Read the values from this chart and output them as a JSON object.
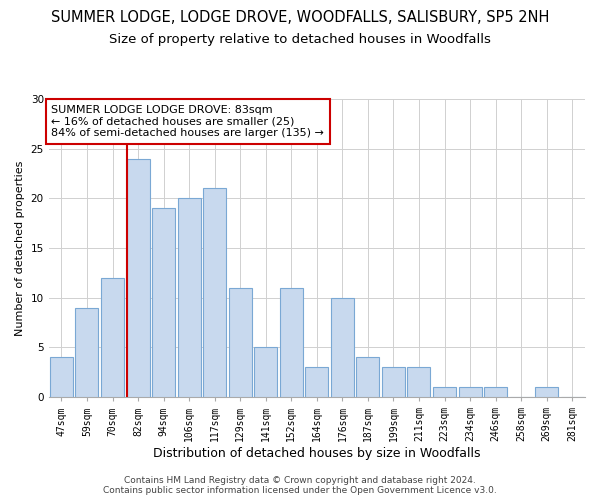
{
  "title": "SUMMER LODGE, LODGE DROVE, WOODFALLS, SALISBURY, SP5 2NH",
  "subtitle": "Size of property relative to detached houses in Woodfalls",
  "xlabel": "Distribution of detached houses by size in Woodfalls",
  "ylabel": "Number of detached properties",
  "bar_labels": [
    "47sqm",
    "59sqm",
    "70sqm",
    "82sqm",
    "94sqm",
    "106sqm",
    "117sqm",
    "129sqm",
    "141sqm",
    "152sqm",
    "164sqm",
    "176sqm",
    "187sqm",
    "199sqm",
    "211sqm",
    "223sqm",
    "234sqm",
    "246sqm",
    "258sqm",
    "269sqm",
    "281sqm"
  ],
  "bar_values": [
    4,
    9,
    12,
    24,
    19,
    20,
    21,
    11,
    5,
    11,
    3,
    10,
    4,
    3,
    3,
    1,
    1,
    1,
    0,
    1,
    0
  ],
  "vline_index": 3,
  "bar_color": "#c8d9ee",
  "bar_edge_color": "#7aa8d4",
  "vline_color": "#cc0000",
  "annotation_title": "SUMMER LODGE LODGE DROVE: 83sqm",
  "annotation_line1": "← 16% of detached houses are smaller (25)",
  "annotation_line2": "84% of semi-detached houses are larger (135) →",
  "annotation_box_color": "#ffffff",
  "annotation_box_edge": "#cc0000",
  "ylim": [
    0,
    30
  ],
  "yticks": [
    0,
    5,
    10,
    15,
    20,
    25,
    30
  ],
  "footer1": "Contains HM Land Registry data © Crown copyright and database right 2024.",
  "footer2": "Contains public sector information licensed under the Open Government Licence v3.0.",
  "bg_color": "#ffffff",
  "grid_color": "#d0d0d0",
  "title_fontsize": 10.5,
  "subtitle_fontsize": 9.5,
  "xlabel_fontsize": 9,
  "ylabel_fontsize": 8,
  "tick_fontsize": 7,
  "annotation_fontsize": 8,
  "footer_fontsize": 6.5
}
